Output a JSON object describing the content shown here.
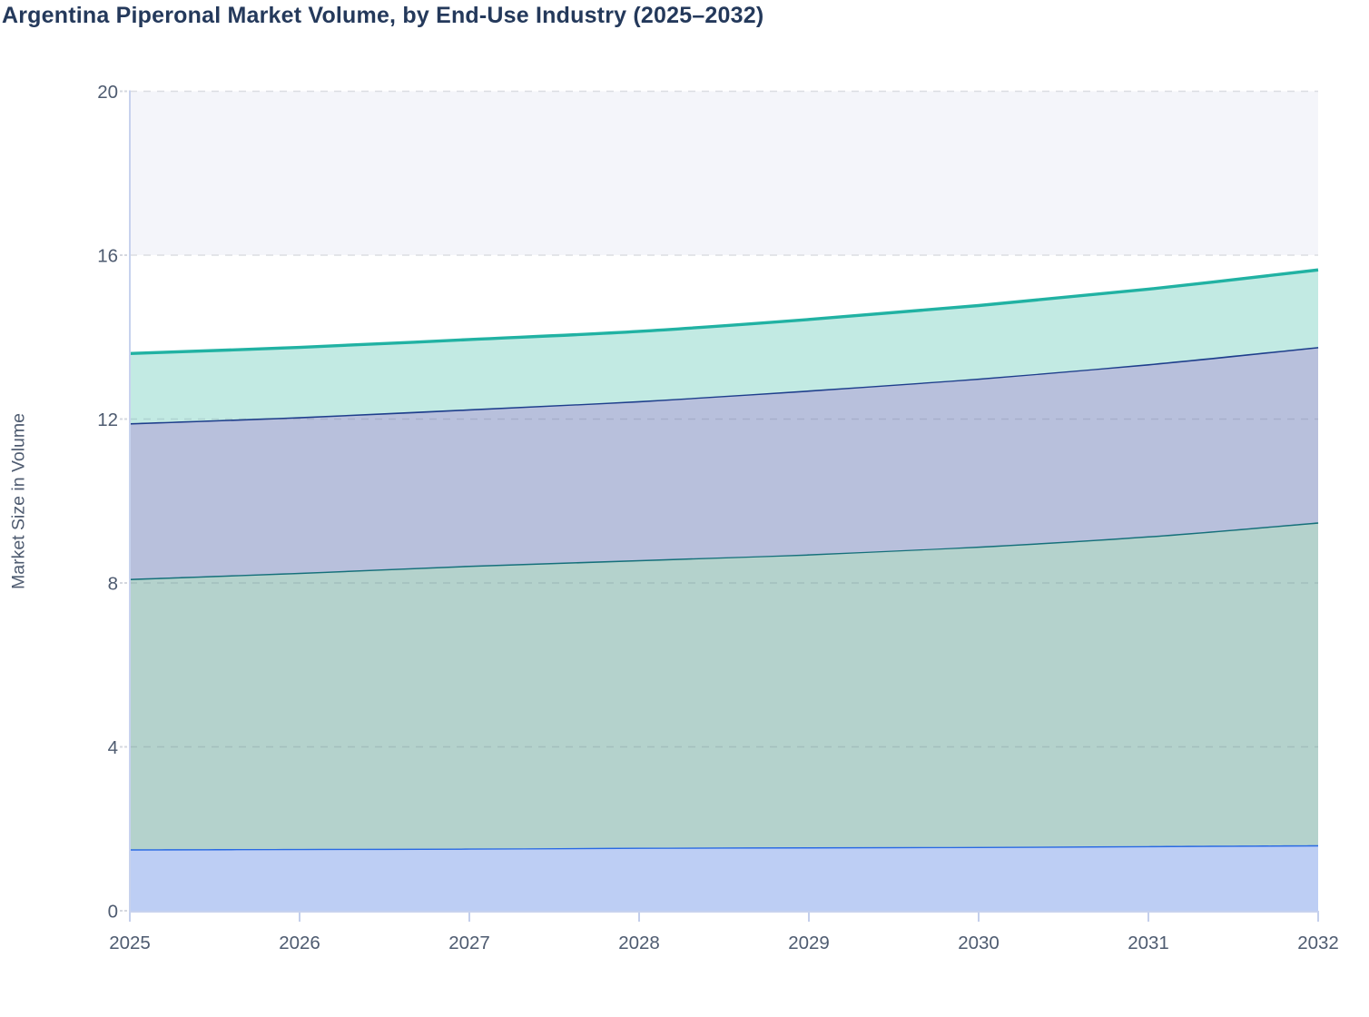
{
  "chart_data": {
    "type": "area",
    "stacked": true,
    "smooth": true,
    "title": "Argentina Piperonal Market Volume, by End-Use Industry (2025–2032)",
    "ylabel": "Market Size in Volume",
    "xlabel": "",
    "x_labels": [
      "2025",
      "2026",
      "2027",
      "2028",
      "2029",
      "2030",
      "2031",
      "2032"
    ],
    "y_ticks": [
      0,
      4,
      8,
      12,
      16,
      20
    ],
    "ylim": [
      0,
      20
    ],
    "legend": "none",
    "grid": "horizontal-dashed",
    "background_bands": "alternating light fill between gridlines (16-20 visible)",
    "series": [
      {
        "name": "series-1-blue-bottom",
        "line_color": "#2A6AE3",
        "fill_color": "#BDCEF4",
        "line_width": 2.8,
        "values": [
          1.5,
          1.51,
          1.52,
          1.54,
          1.55,
          1.56,
          1.58,
          1.6
        ]
      },
      {
        "name": "series-2-dark-teal",
        "line_color": "#15707A",
        "fill_color": "#B4D2CC",
        "line_width": 3.0,
        "values": [
          6.6,
          6.74,
          6.9,
          7.02,
          7.15,
          7.33,
          7.56,
          7.88
        ]
      },
      {
        "name": "series-3-navy",
        "line_color": "#1E3E8C",
        "fill_color": "#B8C0DC",
        "line_width": 3.2,
        "values": [
          3.8,
          3.8,
          3.82,
          3.88,
          4.0,
          4.1,
          4.2,
          4.28
        ]
      },
      {
        "name": "series-4-teal-top",
        "line_color": "#21B2A3",
        "fill_color": "#C2EAE3",
        "line_width": 3.4,
        "values": [
          1.7,
          1.7,
          1.7,
          1.7,
          1.73,
          1.78,
          1.83,
          1.88
        ]
      }
    ],
    "cumulative_totals": [
      13.6,
      13.75,
      13.94,
      14.14,
      14.43,
      14.77,
      15.17,
      15.64
    ],
    "colors": {
      "title": "#24395B",
      "tick_label": "#4E5B70",
      "axis_line": "#C7D2EE",
      "x_tick_mark": "#C4CFEC",
      "y_tick_mark": "#D5D8DF",
      "gridline": "#DBDDE2",
      "band_bg": "#F4F5FA"
    }
  }
}
